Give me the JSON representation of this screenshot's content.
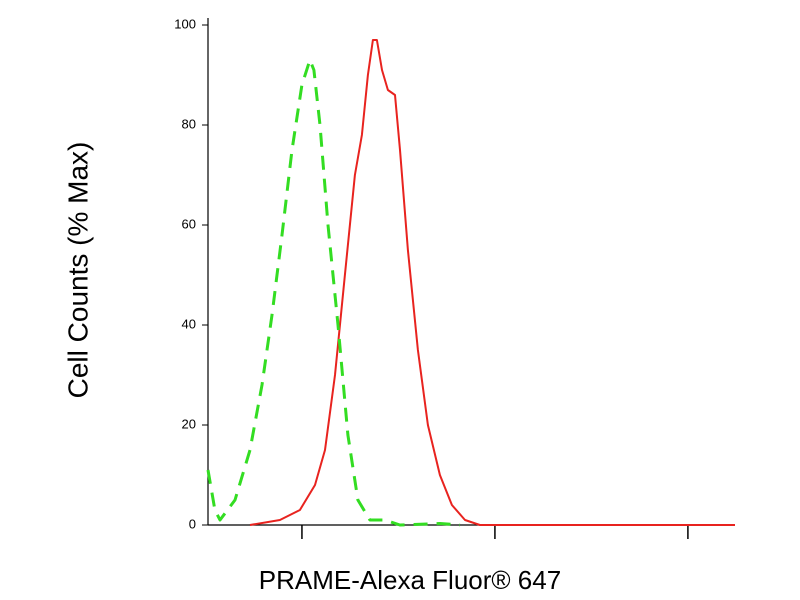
{
  "chart_data": {
    "type": "line",
    "x_label": "PRAME-Alexa Fluor® 647",
    "y_label": "Cell Counts (% Max)",
    "xlog": true,
    "xlim": [
      32.6,
      17540
    ],
    "xticks": [
      100,
      1000,
      10000
    ],
    "ylim": [
      0,
      100
    ],
    "yticks": [
      0,
      20,
      40,
      60,
      80,
      100
    ],
    "series": [
      {
        "color": "#e8231f",
        "dash": false,
        "x": [
          53.8,
          76.9,
          97.6,
          116.8,
          131.6,
          148.3,
          167.0,
          188.2,
          204.6,
          219.8,
          233.3,
          244.7,
          259.9,
          279.0,
          303.4,
          322.1,
          354.2,
          399.0,
          449.7,
          518.8,
          598.4,
          699.5,
          835.6,
          17540
        ],
        "values": [
          0,
          1,
          3,
          8,
          15,
          30,
          50,
          70,
          78,
          90,
          97,
          97,
          91,
          87,
          86,
          75,
          55,
          35,
          20,
          10,
          4,
          1,
          0,
          0
        ]
      },
      {
        "color": "#33dd22",
        "dash": true,
        "x": [
          32.6,
          35.4,
          37.6,
          45.0,
          53.8,
          62.1,
          70.0,
          78.8,
          88.8,
          100,
          110,
          115.4,
          124,
          136.4,
          153.7,
          173,
          195,
          225,
          269,
          322,
          519,
          659
        ],
        "values": [
          11,
          3,
          1,
          5,
          15,
          28,
          42,
          58,
          75,
          88,
          93,
          91,
          80,
          60,
          40,
          18,
          5,
          1,
          1,
          0,
          0.3,
          0
        ]
      }
    ]
  }
}
